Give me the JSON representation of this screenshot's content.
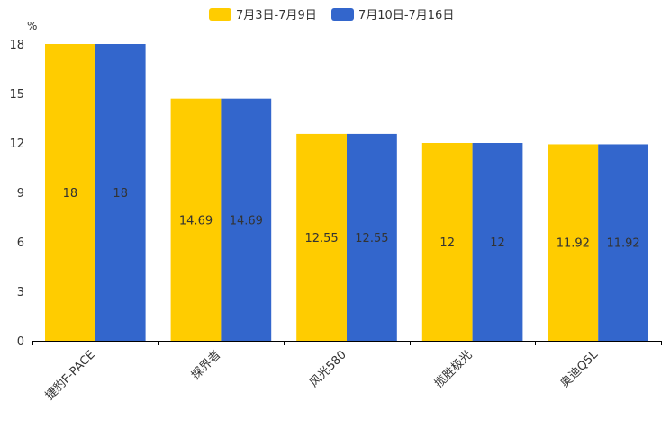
{
  "chart_data": {
    "type": "bar",
    "title": "",
    "ylabel": "%",
    "xlabel": "",
    "ylim": [
      0,
      18
    ],
    "yticks": [
      0,
      3,
      6,
      9,
      12,
      15,
      18
    ],
    "categories": [
      "捷豹F-PACE",
      "探界者",
      "风光580",
      "揽胜极光",
      "奥迪Q5L"
    ],
    "series": [
      {
        "name": "7月3日-7月9日",
        "color": "#FFCC00",
        "values": [
          18,
          14.69,
          12.55,
          12,
          11.92
        ],
        "labels": [
          "18",
          "14.69",
          "12.55",
          "12",
          "11.92"
        ]
      },
      {
        "name": "7月10日-7月16日",
        "color": "#3366CC",
        "values": [
          18,
          14.69,
          12.55,
          12,
          11.92
        ],
        "labels": [
          "18",
          "14.69",
          "12.55",
          "12",
          "11.92"
        ]
      }
    ],
    "legend_position": "top-center",
    "grid": false
  }
}
